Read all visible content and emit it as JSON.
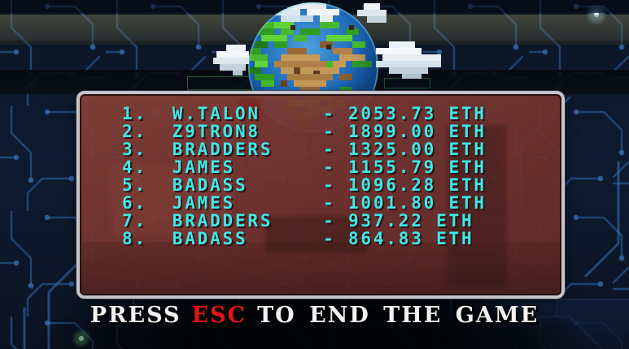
{
  "screen": "game-over-leaderboard",
  "colors": {
    "background_navy": "#0c1626",
    "circuit_blue": "#2a5d9e",
    "circuit_blue_light": "#3d77c2",
    "panel_fill": "#7c3f38",
    "panel_border": "#c4c4ca",
    "score_text_cyan": "#3ce9e9",
    "footer_text_white": "#f2f2f2",
    "esc_red": "#e41414",
    "tan_band": "#7d7852"
  },
  "icons": {
    "globe": "earth-globe-pixel-art",
    "clouds": "pixel-clouds",
    "background": "circuit-board-pattern"
  },
  "leaderboard": {
    "currency": "ETH",
    "separator": "-",
    "entries": [
      {
        "rank": 1,
        "name": "W.TALON",
        "score": "2053.73"
      },
      {
        "rank": 2,
        "name": "Z9TRON8",
        "score": "1899.00"
      },
      {
        "rank": 3,
        "name": "BRADDERS",
        "score": "1325.00"
      },
      {
        "rank": 4,
        "name": "JAMES",
        "score": "1155.79"
      },
      {
        "rank": 5,
        "name": "BADASS",
        "score": "1096.28"
      },
      {
        "rank": 6,
        "name": "JAMES",
        "score": "1001.80"
      },
      {
        "rank": 7,
        "name": "BRADDERS",
        "score": "937.22"
      },
      {
        "rank": 8,
        "name": "BADASS",
        "score": "864.83"
      }
    ]
  },
  "footer": {
    "prefix": "PRESS",
    "key": "ESC",
    "suffix": "TO END THE GAME"
  }
}
